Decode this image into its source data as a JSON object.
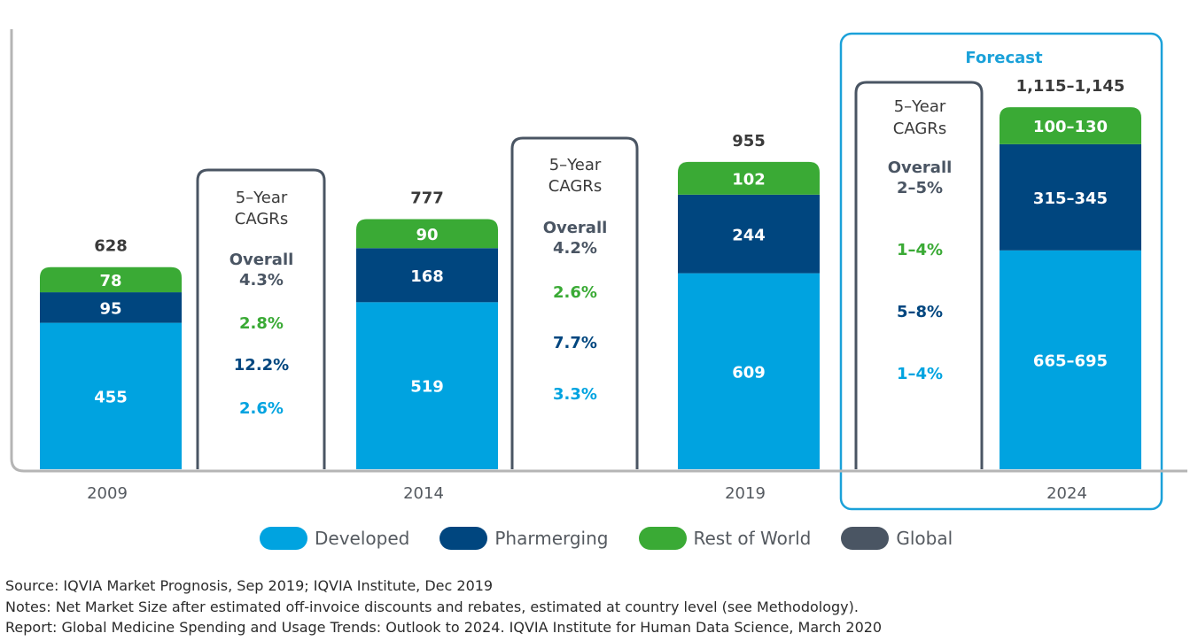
{
  "chart_data": {
    "type": "bar",
    "stacked": true,
    "categories": [
      "2009",
      "2014",
      "2019",
      "2024"
    ],
    "series": [
      {
        "name": "Developed",
        "color": "#00a3e0",
        "values": [
          455,
          519,
          609,
          680
        ],
        "labels": [
          "455",
          "519",
          "609",
          "665–695"
        ]
      },
      {
        "name": "Pharmerging",
        "color": "#00467f",
        "values": [
          95,
          168,
          244,
          330
        ],
        "labels": [
          "95",
          "168",
          "244",
          "315–345"
        ]
      },
      {
        "name": "Rest of World",
        "color": "#3aaa35",
        "values": [
          78,
          90,
          102,
          115
        ],
        "labels": [
          "78",
          "90",
          "102",
          "100–130"
        ]
      }
    ],
    "totals": [
      "628",
      "777",
      "955",
      "1,115–1,145"
    ],
    "ylim": [
      0,
      1350
    ],
    "grid": false,
    "legend_placement": "bottom",
    "cagr_boxes": [
      {
        "title_line1": "5–Year",
        "title_line2": "CAGRs",
        "overall_label": "Overall",
        "overall": "4.3%",
        "rest_of_world": "2.8%",
        "pharmerging": "12.2%",
        "developed": "2.6%"
      },
      {
        "title_line1": "5–Year",
        "title_line2": "CAGRs",
        "overall_label": "Overall",
        "overall": "4.2%",
        "rest_of_world": "2.6%",
        "pharmerging": "7.7%",
        "developed": "3.3%"
      },
      {
        "title_line1": "5–Year",
        "title_line2": "CAGRs",
        "overall_label": "Overall",
        "overall": "2–5%",
        "rest_of_world": "1–4%",
        "pharmerging": "5–8%",
        "developed": "1–4%"
      }
    ],
    "forecast_label": "Forecast"
  },
  "legend": [
    {
      "label": "Developed",
      "color": "#00a3e0"
    },
    {
      "label": "Pharmerging",
      "color": "#00467f"
    },
    {
      "label": "Rest of World",
      "color": "#3aaa35"
    },
    {
      "label": "Global",
      "color": "#4a5563"
    }
  ],
  "colors": {
    "axis": "#b5b5b5",
    "box_border": "#4a5563",
    "forecast_border": "#1ba1d9",
    "text": "#3a3a3a"
  },
  "notes": {
    "source": "Source: IQVIA Market Prognosis, Sep 2019; IQVIA Institute, Dec 2019",
    "notes": "Notes: Net Market Size after estimated off-invoice discounts and rebates, estimated at country level (see Methodology).",
    "report": "Report: Global Medicine Spending and Usage Trends: Outlook to 2024. IQVIA Institute for Human Data Science, March 2020"
  }
}
